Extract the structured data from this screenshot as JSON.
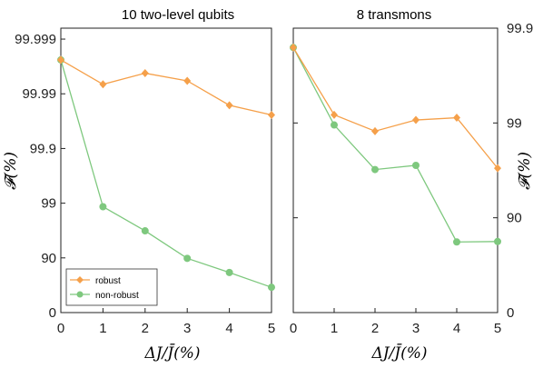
{
  "chart_data": [
    {
      "type": "line",
      "title": "10 two-level qubits",
      "xlabel": "ΔJ/J̄(%)",
      "ylabel": "𝓕(%)",
      "x": [
        0,
        1,
        2,
        3,
        4,
        5
      ],
      "xlim": [
        0,
        5
      ],
      "y_scale": "log-infidelity",
      "y_ticks": [
        "0",
        "90",
        "99",
        "99.9",
        "99.99",
        "99.999"
      ],
      "y_tick_values": [
        0,
        90,
        99,
        99.9,
        99.99,
        99.999
      ],
      "ylim": [
        0,
        99.999
      ],
      "legend_position": "bottom-left",
      "series": [
        {
          "name": "robust",
          "color": "#F5A04A",
          "marker": "diamond",
          "values": [
            99.9976,
            99.9933,
            99.9958,
            99.9942,
            99.9838,
            99.9756
          ]
        },
        {
          "name": "non-robust",
          "color": "#7EC87E",
          "marker": "circle",
          "values": [
            99.9976,
            98.84,
            96.8,
            89.8,
            81.5,
            65.5
          ]
        }
      ]
    },
    {
      "type": "line",
      "title": "8 transmons",
      "xlabel": "ΔJ/J̄(%)",
      "ylabel": "𝓕(%)",
      "x": [
        0,
        1,
        2,
        3,
        4,
        5
      ],
      "xlim": [
        0,
        5
      ],
      "y_scale": "log-infidelity",
      "y_ticks": [
        "0",
        "90",
        "99",
        "99.9"
      ],
      "y_tick_values": [
        0,
        90,
        99,
        99.9
      ],
      "ylim": [
        0,
        99.9
      ],
      "series": [
        {
          "name": "robust",
          "color": "#F5A04A",
          "marker": "diamond",
          "values": [
            99.84,
            99.18,
            98.78,
            99.07,
            99.12,
            97.0
          ]
        },
        {
          "name": "non-robust",
          "color": "#7EC87E",
          "marker": "circle",
          "values": [
            99.84,
            98.95,
            96.9,
            97.2,
            82.0,
            82.2
          ]
        }
      ]
    }
  ]
}
